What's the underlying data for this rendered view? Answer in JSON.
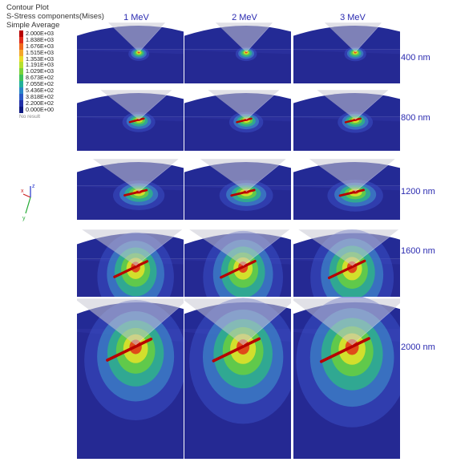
{
  "legend": {
    "title": "Contour Plot",
    "subtitle": "S-Stress components(Mises)",
    "method": "Simple Average",
    "levels": [
      {
        "label": "2.000E+03",
        "color": "#b80000"
      },
      {
        "label": "1.838E+03",
        "color": "#e02a1a"
      },
      {
        "label": "1.676E+03",
        "color": "#f06a1e"
      },
      {
        "label": "1.515E+03",
        "color": "#f4a62a"
      },
      {
        "label": "1.353E+03",
        "color": "#e8dc28"
      },
      {
        "label": "1.191E+03",
        "color": "#b6e02e"
      },
      {
        "label": "1.029E+03",
        "color": "#7ad23a"
      },
      {
        "label": "8.673E+02",
        "color": "#3ec25a"
      },
      {
        "label": "7.055E+02",
        "color": "#24b09a"
      },
      {
        "label": "5.436E+02",
        "color": "#2a86c8"
      },
      {
        "label": "3.818E+02",
        "color": "#2a58c6"
      },
      {
        "label": "2.200E+02",
        "color": "#2230a8"
      },
      {
        "label": "0.000E+00",
        "color": "#0f1a82"
      }
    ],
    "no_result": "No result"
  },
  "columns": [
    "1 MeV",
    "2 MeV",
    "3 MeV"
  ],
  "rows": [
    "400 nm",
    "800 nm",
    "1200 nm",
    "1600 nm",
    "2000 nm"
  ],
  "triad_labels": {
    "x": "x",
    "y": "y",
    "z": "z"
  }
}
